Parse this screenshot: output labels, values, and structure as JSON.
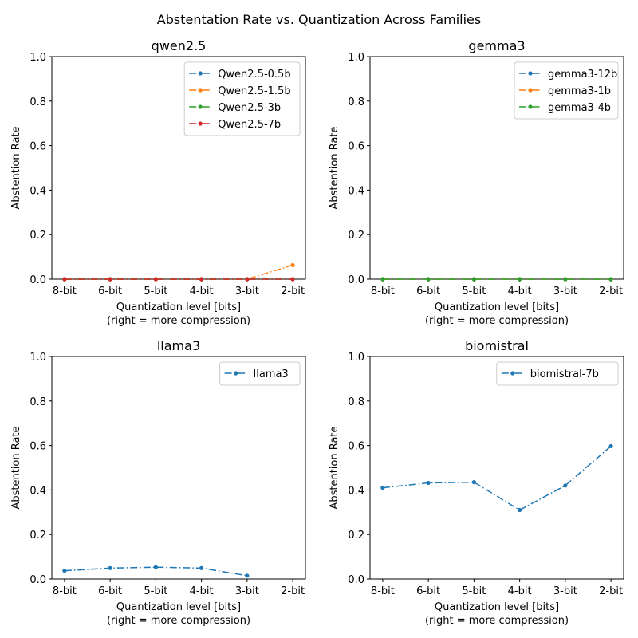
{
  "title": "Abstentation Rate vs. Quantization Across Families",
  "chart_data": [
    {
      "type": "line",
      "title": "qwen2.5",
      "xlabel_line1": "Quantization level [bits]",
      "xlabel_line2": "(right = more compression)",
      "ylabel": "Abstention Rate",
      "categories": [
        "8-bit",
        "6-bit",
        "5-bit",
        "4-bit",
        "3-bit",
        "2-bit"
      ],
      "ylim": [
        0,
        1
      ],
      "yticks": [
        "0.0",
        "0.2",
        "0.4",
        "0.6",
        "0.8",
        "1.0"
      ],
      "legend_position": "upper right",
      "grid": false,
      "series": [
        {
          "name": "Qwen2.5-0.5b",
          "color": "#1f77b4",
          "values": [
            0,
            0,
            0,
            0,
            0,
            0
          ]
        },
        {
          "name": "Qwen2.5-1.5b",
          "color": "#ff7f0e",
          "values": [
            0,
            0,
            0,
            0,
            0,
            0.063
          ]
        },
        {
          "name": "Qwen2.5-3b",
          "color": "#2ca02c",
          "values": [
            0,
            0,
            0,
            0,
            0,
            0
          ]
        },
        {
          "name": "Qwen2.5-7b",
          "color": "#d62728",
          "values": [
            0,
            0,
            0,
            0,
            0,
            0
          ]
        }
      ]
    },
    {
      "type": "line",
      "title": "gemma3",
      "xlabel_line1": "Quantization level [bits]",
      "xlabel_line2": "(right = more compression)",
      "ylabel": "Abstention Rate",
      "categories": [
        "8-bit",
        "6-bit",
        "5-bit",
        "4-bit",
        "3-bit",
        "2-bit"
      ],
      "ylim": [
        0,
        1
      ],
      "yticks": [
        "0.0",
        "0.2",
        "0.4",
        "0.6",
        "0.8",
        "1.0"
      ],
      "legend_position": "upper right",
      "grid": false,
      "series": [
        {
          "name": "gemma3-12b",
          "color": "#1f77b4",
          "values": [
            0,
            0,
            0,
            0,
            0,
            0
          ]
        },
        {
          "name": "gemma3-1b",
          "color": "#ff7f0e",
          "values": [
            0,
            0,
            0,
            0,
            0,
            0
          ]
        },
        {
          "name": "gemma3-4b",
          "color": "#2ca02c",
          "values": [
            0,
            0,
            0,
            0,
            0,
            0
          ]
        }
      ]
    },
    {
      "type": "line",
      "title": "llama3",
      "xlabel_line1": "Quantization level [bits]",
      "xlabel_line2": "(right = more compression)",
      "ylabel": "Abstention Rate",
      "categories": [
        "8-bit",
        "6-bit",
        "5-bit",
        "4-bit",
        "3-bit",
        "2-bit"
      ],
      "ylim": [
        0,
        1
      ],
      "yticks": [
        "0.0",
        "0.2",
        "0.4",
        "0.6",
        "0.8",
        "1.0"
      ],
      "legend_position": "upper right",
      "grid": false,
      "series": [
        {
          "name": "llama3",
          "color": "#1f77b4",
          "values": [
            0.037,
            0.049,
            0.053,
            0.049,
            0.015,
            null
          ]
        }
      ]
    },
    {
      "type": "line",
      "title": "biomistral",
      "xlabel_line1": "Quantization level [bits]",
      "xlabel_line2": "(right = more compression)",
      "ylabel": "Abstention Rate",
      "categories": [
        "8-bit",
        "6-bit",
        "5-bit",
        "4-bit",
        "3-bit",
        "2-bit"
      ],
      "ylim": [
        0,
        1
      ],
      "yticks": [
        "0.0",
        "0.2",
        "0.4",
        "0.6",
        "0.8",
        "1.0"
      ],
      "legend_position": "upper right",
      "grid": false,
      "series": [
        {
          "name": "biomistral-7b",
          "color": "#1f77b4",
          "values": [
            0.41,
            0.432,
            0.435,
            0.31,
            0.42,
            0.597
          ]
        }
      ]
    }
  ]
}
